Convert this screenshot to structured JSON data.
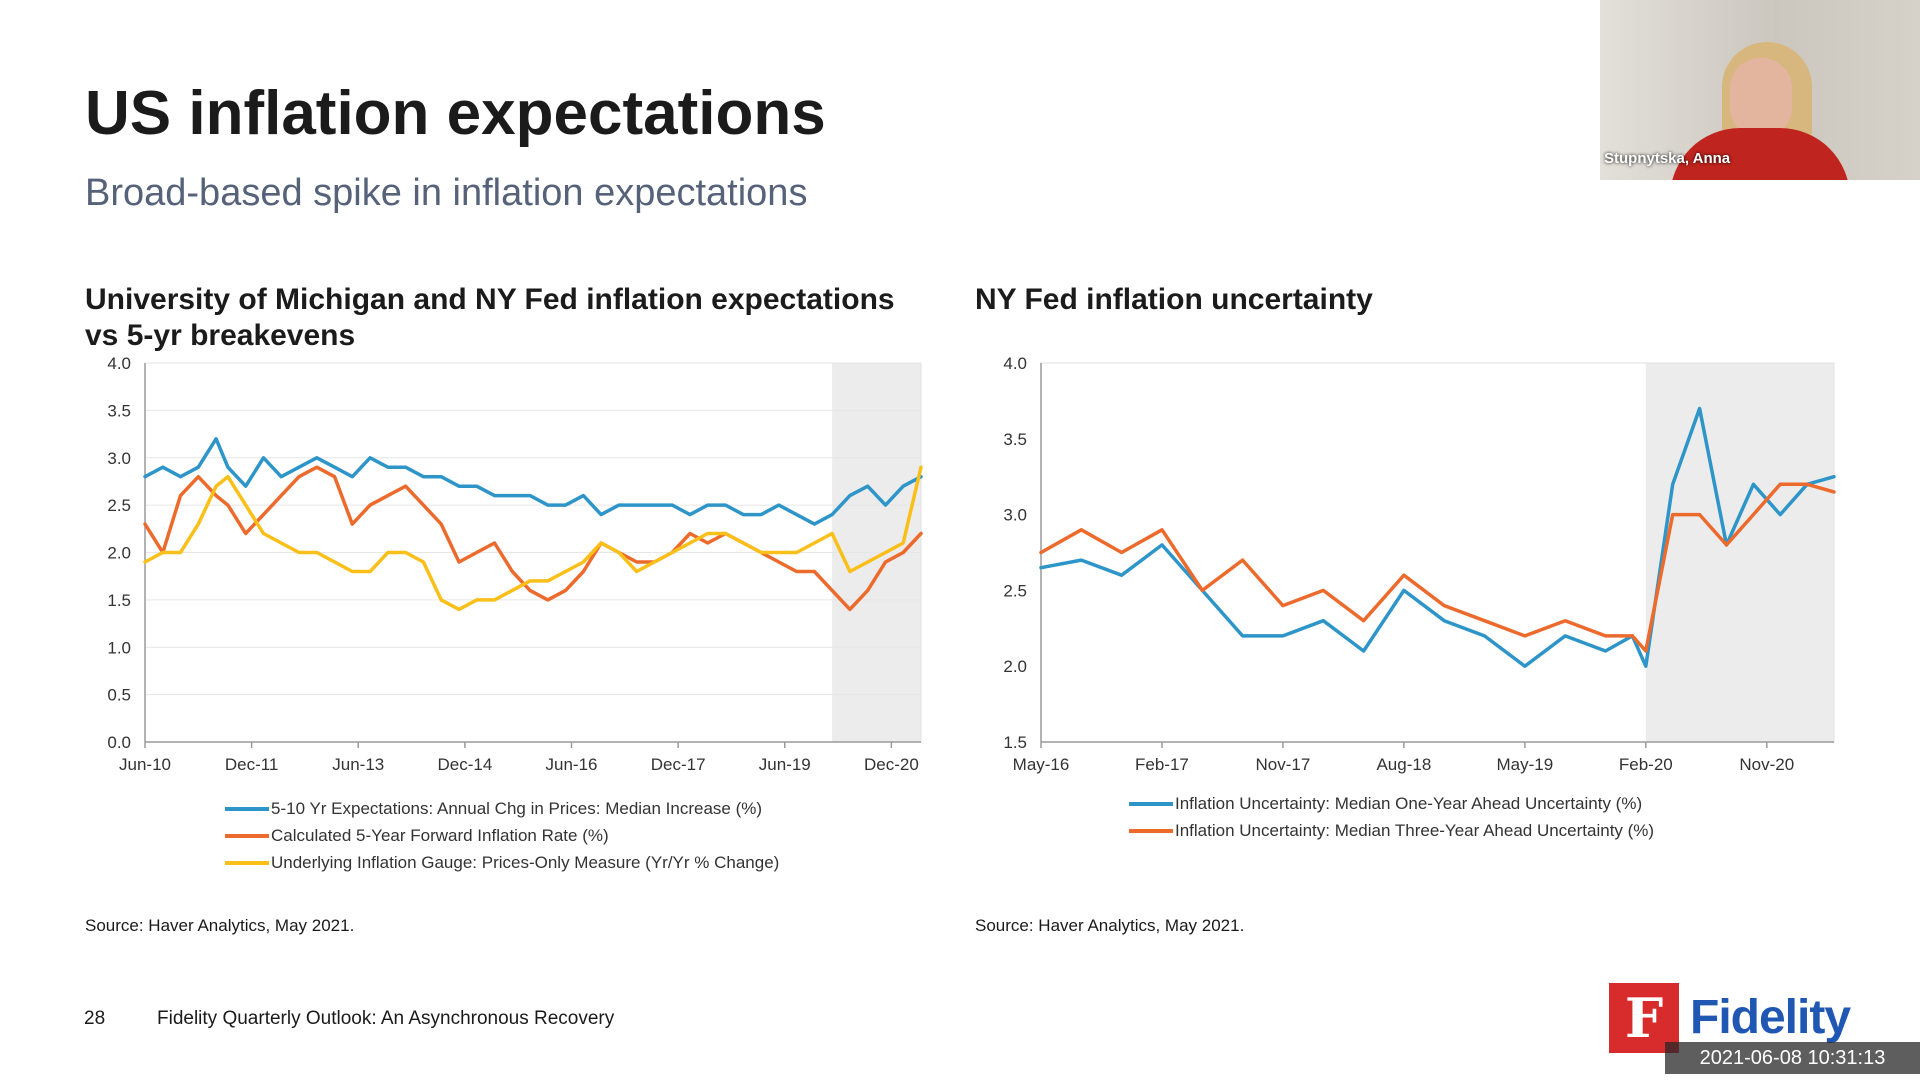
{
  "slide": {
    "title": "US inflation expectations",
    "subtitle": "Broad-based spike in inflation expectations",
    "page_number": "28",
    "footer": "Fidelity Quarterly Outlook: An Asynchronous Recovery",
    "logo_text": "Fidelity",
    "logo_glyph": "F",
    "brand_color": "#d82b2b"
  },
  "video": {
    "participant_name": "Stupnytska, Anna"
  },
  "timestamp": "2021-06-08  10:31:13",
  "colors": {
    "blue": "#2e95c9",
    "orange": "#ed6a2d",
    "yellow": "#fbbf1a",
    "shade": "#ececec"
  },
  "chart_data": [
    {
      "type": "line",
      "title": "University of Michigan and NY Fed inflation expectations vs 5-yr breakevens",
      "xlabel": "",
      "ylabel": "",
      "ylim": [
        0,
        4
      ],
      "yticks": [
        "0.0",
        "0.5",
        "1.0",
        "1.5",
        "2.0",
        "2.5",
        "3.0",
        "3.5",
        "4.0"
      ],
      "xticks": [
        "Jun-10",
        "Dec-11",
        "Jun-13",
        "Dec-14",
        "Jun-16",
        "Dec-17",
        "Jun-19",
        "Dec-20"
      ],
      "xrange": [
        "2010-06",
        "2021-05"
      ],
      "shaded_period": [
        "2020-02",
        "2021-05"
      ],
      "grid": true,
      "legend_position": "bottom",
      "source": "Source: Haver Analytics, May 2021.",
      "series": [
        {
          "name": "5-10 Yr Expectations: Annual Chg in Prices: Median Increase (%)",
          "color": "#2e95c9",
          "x": [
            "2010-06",
            "2010-09",
            "2010-12",
            "2011-03",
            "2011-06",
            "2011-08",
            "2011-11",
            "2012-02",
            "2012-05",
            "2012-08",
            "2012-11",
            "2013-02",
            "2013-05",
            "2013-08",
            "2013-11",
            "2014-02",
            "2014-05",
            "2014-08",
            "2014-11",
            "2015-02",
            "2015-05",
            "2015-08",
            "2015-11",
            "2016-02",
            "2016-05",
            "2016-08",
            "2016-11",
            "2017-02",
            "2017-05",
            "2017-08",
            "2017-11",
            "2018-02",
            "2018-05",
            "2018-08",
            "2018-11",
            "2019-02",
            "2019-05",
            "2019-08",
            "2019-11",
            "2020-02",
            "2020-05",
            "2020-08",
            "2020-11",
            "2021-02",
            "2021-05"
          ],
          "y": [
            2.8,
            2.9,
            2.8,
            2.9,
            3.2,
            2.9,
            2.7,
            3.0,
            2.8,
            2.9,
            3.0,
            2.9,
            2.8,
            3.0,
            2.9,
            2.9,
            2.8,
            2.8,
            2.7,
            2.7,
            2.6,
            2.6,
            2.6,
            2.5,
            2.5,
            2.6,
            2.4,
            2.5,
            2.5,
            2.5,
            2.5,
            2.4,
            2.5,
            2.5,
            2.4,
            2.4,
            2.5,
            2.4,
            2.3,
            2.4,
            2.6,
            2.7,
            2.5,
            2.7,
            2.8
          ]
        },
        {
          "name": "Calculated 5-Year Forward Inflation Rate (%)",
          "color": "#ed6a2d",
          "x": [
            "2010-06",
            "2010-09",
            "2010-12",
            "2011-03",
            "2011-06",
            "2011-08",
            "2011-11",
            "2012-02",
            "2012-05",
            "2012-08",
            "2012-11",
            "2013-02",
            "2013-05",
            "2013-08",
            "2013-11",
            "2014-02",
            "2014-05",
            "2014-08",
            "2014-11",
            "2015-02",
            "2015-05",
            "2015-08",
            "2015-11",
            "2016-02",
            "2016-05",
            "2016-08",
            "2016-11",
            "2017-02",
            "2017-05",
            "2017-08",
            "2017-11",
            "2018-02",
            "2018-05",
            "2018-08",
            "2018-11",
            "2019-02",
            "2019-05",
            "2019-08",
            "2019-11",
            "2020-02",
            "2020-05",
            "2020-08",
            "2020-11",
            "2021-02",
            "2021-05"
          ],
          "y": [
            2.3,
            2.0,
            2.6,
            2.8,
            2.6,
            2.5,
            2.2,
            2.4,
            2.6,
            2.8,
            2.9,
            2.8,
            2.3,
            2.5,
            2.6,
            2.7,
            2.5,
            2.3,
            1.9,
            2.0,
            2.1,
            1.8,
            1.6,
            1.5,
            1.6,
            1.8,
            2.1,
            2.0,
            1.9,
            1.9,
            2.0,
            2.2,
            2.1,
            2.2,
            2.1,
            2.0,
            1.9,
            1.8,
            1.8,
            1.6,
            1.4,
            1.6,
            1.9,
            2.0,
            2.2
          ]
        },
        {
          "name": "Underlying Inflation Gauge: Prices-Only Measure (Yr/Yr % Change)",
          "color": "#fbbf1a",
          "x": [
            "2010-06",
            "2010-09",
            "2010-12",
            "2011-03",
            "2011-06",
            "2011-08",
            "2011-11",
            "2012-02",
            "2012-05",
            "2012-08",
            "2012-11",
            "2013-02",
            "2013-05",
            "2013-08",
            "2013-11",
            "2014-02",
            "2014-05",
            "2014-08",
            "2014-11",
            "2015-02",
            "2015-05",
            "2015-08",
            "2015-11",
            "2016-02",
            "2016-05",
            "2016-08",
            "2016-11",
            "2017-02",
            "2017-05",
            "2017-08",
            "2017-11",
            "2018-02",
            "2018-05",
            "2018-08",
            "2018-11",
            "2019-02",
            "2019-05",
            "2019-08",
            "2019-11",
            "2020-02",
            "2020-05",
            "2020-08",
            "2020-11",
            "2021-02",
            "2021-05"
          ],
          "y": [
            1.9,
            2.0,
            2.0,
            2.3,
            2.7,
            2.8,
            2.5,
            2.2,
            2.1,
            2.0,
            2.0,
            1.9,
            1.8,
            1.8,
            2.0,
            2.0,
            1.9,
            1.5,
            1.4,
            1.5,
            1.5,
            1.6,
            1.7,
            1.7,
            1.8,
            1.9,
            2.1,
            2.0,
            1.8,
            1.9,
            2.0,
            2.1,
            2.2,
            2.2,
            2.1,
            2.0,
            2.0,
            2.0,
            2.1,
            2.2,
            1.8,
            1.9,
            2.0,
            2.1,
            2.9
          ]
        }
      ]
    },
    {
      "type": "line",
      "title": "NY Fed inflation uncertainty",
      "xlabel": "",
      "ylabel": "",
      "ylim": [
        1.5,
        4
      ],
      "yticks": [
        "1.5",
        "2.0",
        "2.5",
        "3.0",
        "3.5",
        "4.0"
      ],
      "xticks": [
        "May-16",
        "Feb-17",
        "Nov-17",
        "Aug-18",
        "May-19",
        "Feb-20",
        "Nov-20"
      ],
      "xrange": [
        "2016-05",
        "2021-04"
      ],
      "shaded_period": [
        "2020-02",
        "2021-04"
      ],
      "grid": false,
      "legend_position": "bottom",
      "source": "Source: Haver Analytics, May 2021.",
      "series": [
        {
          "name": "Inflation Uncertainty: Median One-Year Ahead Uncertainty (%)",
          "color": "#2e95c9",
          "x": [
            "2016-05",
            "2016-08",
            "2016-11",
            "2017-02",
            "2017-05",
            "2017-08",
            "2017-11",
            "2018-02",
            "2018-05",
            "2018-08",
            "2018-11",
            "2019-02",
            "2019-05",
            "2019-08",
            "2019-11",
            "2020-01",
            "2020-02",
            "2020-04",
            "2020-06",
            "2020-08",
            "2020-10",
            "2020-12",
            "2021-02",
            "2021-04"
          ],
          "y": [
            2.65,
            2.7,
            2.6,
            2.8,
            2.5,
            2.2,
            2.2,
            2.3,
            2.1,
            2.5,
            2.3,
            2.2,
            2.0,
            2.2,
            2.1,
            2.2,
            2.0,
            3.2,
            3.7,
            2.8,
            3.2,
            3.0,
            3.2,
            3.25
          ]
        },
        {
          "name": "Inflation Uncertainty: Median Three-Year Ahead Uncertainty (%)",
          "color": "#ed6a2d",
          "x": [
            "2016-05",
            "2016-08",
            "2016-11",
            "2017-02",
            "2017-05",
            "2017-08",
            "2017-11",
            "2018-02",
            "2018-05",
            "2018-08",
            "2018-11",
            "2019-02",
            "2019-05",
            "2019-08",
            "2019-11",
            "2020-01",
            "2020-02",
            "2020-04",
            "2020-06",
            "2020-08",
            "2020-10",
            "2020-12",
            "2021-02",
            "2021-04"
          ],
          "y": [
            2.75,
            2.9,
            2.75,
            2.9,
            2.5,
            2.7,
            2.4,
            2.5,
            2.3,
            2.6,
            2.4,
            2.3,
            2.2,
            2.3,
            2.2,
            2.2,
            2.1,
            3.0,
            3.0,
            2.8,
            3.0,
            3.2,
            3.2,
            3.15
          ]
        }
      ]
    }
  ]
}
